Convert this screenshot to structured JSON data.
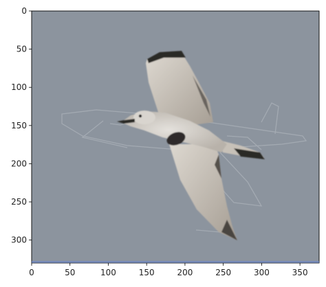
{
  "axes": {
    "x_ticks": [
      0,
      50,
      100,
      150,
      200,
      250,
      300,
      350
    ],
    "y_ticks": [
      0,
      50,
      100,
      150,
      200,
      250,
      300
    ],
    "x_range": [
      0,
      375
    ],
    "y_range": [
      0,
      330
    ],
    "y_inverted": true
  },
  "image": {
    "subject": "bird-in-flight",
    "background_color": "#8c949e",
    "ghost_overlay": "airplane-outline"
  }
}
